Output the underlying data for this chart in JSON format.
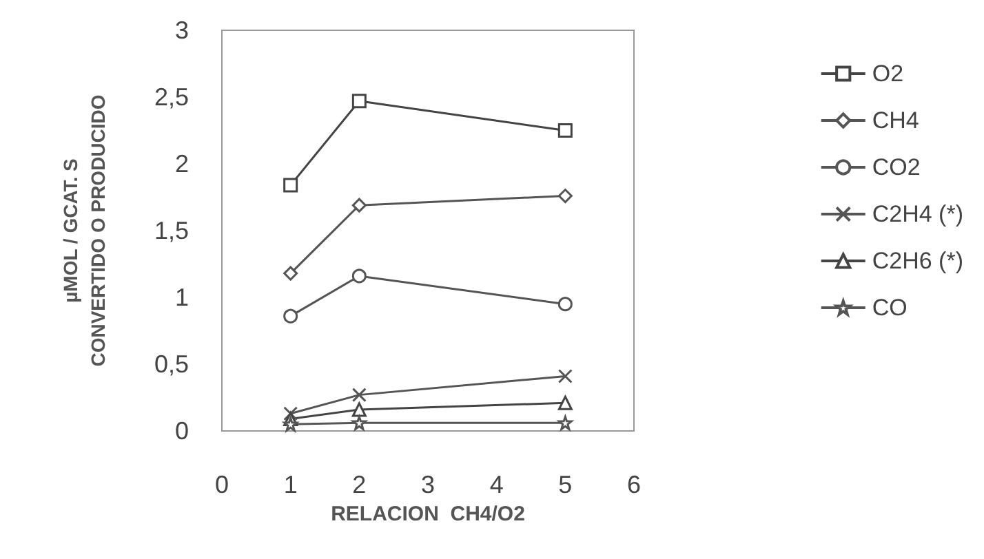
{
  "chart_data": {
    "type": "line",
    "xlabel": "RELACION  CH4/O2",
    "ylabel": "µMOL / GCAT. S\nCONVERTIDO O PRODUCIDO",
    "x": [
      1,
      2,
      5
    ],
    "series": [
      {
        "name": "O2",
        "color": "#444444",
        "marker": "square",
        "values": [
          1.84,
          2.47,
          2.25
        ]
      },
      {
        "name": "CH4",
        "color": "#555555",
        "marker": "diamond",
        "values": [
          1.18,
          1.69,
          1.76
        ]
      },
      {
        "name": "CO2",
        "color": "#555555",
        "marker": "circle",
        "values": [
          0.86,
          1.16,
          0.95
        ]
      },
      {
        "name": "C2H4 (*)",
        "color": "#555555",
        "marker": "cross",
        "values": [
          0.13,
          0.27,
          0.41
        ]
      },
      {
        "name": "C2H6 (*)",
        "color": "#444444",
        "marker": "triangle",
        "values": [
          0.09,
          0.16,
          0.21
        ]
      },
      {
        "name": "CO",
        "color": "#555555",
        "marker": "star",
        "values": [
          0.05,
          0.06,
          0.06
        ]
      }
    ],
    "xlim": [
      0,
      6
    ],
    "xticks": [
      0,
      1,
      2,
      3,
      4,
      5,
      6
    ],
    "ylim": [
      0,
      3
    ],
    "yticks": [
      0,
      {
        "value": 0.5,
        "label": "0,5"
      },
      1,
      {
        "value": 1.5,
        "label": "1,5"
      },
      2,
      {
        "value": 2.5,
        "label": "2,5"
      },
      3
    ],
    "grid": false,
    "legend": "right",
    "line_style": "solid"
  }
}
